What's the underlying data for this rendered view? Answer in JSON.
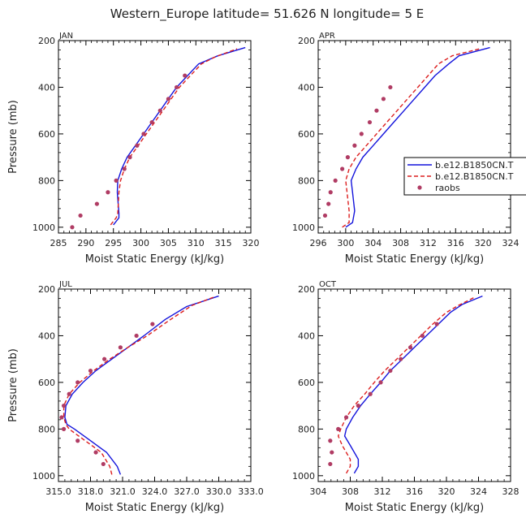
{
  "title": "Western_Europe  latitude= 51.626 N longitude= 5 E",
  "legend": {
    "panel": "APR",
    "entries": [
      {
        "label": "b.e12.B1850CN.T",
        "style": "solid",
        "color": "#1414dc"
      },
      {
        "label": "b.e12.B1850CN.T",
        "style": "dashed",
        "color": "#dc1e1e"
      },
      {
        "label": "raobs",
        "style": "marker",
        "color": "#b03c64"
      }
    ]
  },
  "colors": {
    "model1": "#1414dc",
    "model2": "#dc1e1e",
    "obs": "#b03c64"
  },
  "chart_data": [
    {
      "type": "line",
      "month": "JAN",
      "xlabel": "Moist Static Energy (kJ/kg)",
      "ylabel": "Pressure (mb)",
      "xlim": [
        285,
        320
      ],
      "xticks": [
        285,
        290,
        295,
        300,
        305,
        310,
        315,
        320
      ],
      "xtick_labels": [
        "285",
        "290",
        "295",
        "300",
        "305",
        "310",
        "315",
        "320"
      ],
      "ylim": [
        200,
        1025
      ],
      "yticks": [
        200,
        400,
        600,
        800,
        1000
      ],
      "ytick_labels": [
        "200",
        "400",
        "600",
        "800",
        "1000"
      ],
      "series": [
        {
          "name": "b.e12.B1850CN.T (solid)",
          "style": "solid",
          "points": [
            [
              295.0,
              990
            ],
            [
              296.0,
              960
            ],
            [
              296.0,
              940
            ],
            [
              295.7,
              850
            ],
            [
              295.8,
              800
            ],
            [
              296.5,
              750
            ],
            [
              297.5,
              700
            ],
            [
              299.0,
              650
            ],
            [
              300.5,
              600
            ],
            [
              302.0,
              550
            ],
            [
              303.5,
              500
            ],
            [
              305.0,
              450
            ],
            [
              306.5,
              400
            ],
            [
              308.5,
              350
            ],
            [
              310.5,
              300
            ],
            [
              314.0,
              265
            ],
            [
              319.0,
              230
            ]
          ]
        },
        {
          "name": "b.e12.B1850CN.T (dashed)",
          "style": "dashed",
          "points": [
            [
              294.5,
              990
            ],
            [
              295.5,
              960
            ],
            [
              295.8,
              940
            ],
            [
              296.0,
              850
            ],
            [
              296.3,
              800
            ],
            [
              297.0,
              750
            ],
            [
              298.0,
              700
            ],
            [
              299.5,
              650
            ],
            [
              301.0,
              600
            ],
            [
              302.5,
              550
            ],
            [
              304.0,
              500
            ],
            [
              305.5,
              450
            ],
            [
              307.0,
              400
            ],
            [
              309.0,
              350
            ],
            [
              311.0,
              300
            ],
            [
              313.5,
              270
            ],
            [
              317.5,
              235
            ]
          ]
        },
        {
          "name": "raobs",
          "style": "markers",
          "points": [
            [
              287.5,
              1000
            ],
            [
              289.0,
              950
            ],
            [
              292.0,
              900
            ],
            [
              294.0,
              850
            ],
            [
              295.5,
              800
            ],
            [
              297.0,
              750
            ],
            [
              298.0,
              700
            ],
            [
              299.3,
              650
            ],
            [
              300.5,
              600
            ],
            [
              302.0,
              550
            ],
            [
              303.5,
              500
            ],
            [
              305.0,
              450
            ],
            [
              306.5,
              400
            ],
            [
              308.0,
              350
            ]
          ]
        }
      ]
    },
    {
      "type": "line",
      "month": "APR",
      "xlabel": "Moist Static Energy (kJ/kg)",
      "ylabel": "",
      "xlim": [
        296,
        324
      ],
      "xticks": [
        296,
        300,
        304,
        308,
        312,
        316,
        320,
        324
      ],
      "xtick_labels": [
        "296",
        "300",
        "304",
        "308",
        "312",
        "316",
        "320",
        "324"
      ],
      "ylim": [
        200,
        1025
      ],
      "yticks": [
        200,
        400,
        600,
        800,
        1000
      ],
      "ytick_labels": [
        "200",
        "400",
        "600",
        "800",
        "1000"
      ],
      "series": [
        {
          "name": "b.e12.B1850CN.T (solid)",
          "style": "solid",
          "points": [
            [
              300.0,
              1000
            ],
            [
              301.0,
              980
            ],
            [
              301.3,
              930
            ],
            [
              301.0,
              850
            ],
            [
              300.8,
              800
            ],
            [
              301.5,
              750
            ],
            [
              302.5,
              700
            ],
            [
              304.0,
              650
            ],
            [
              305.5,
              600
            ],
            [
              307.0,
              550
            ],
            [
              308.5,
              500
            ],
            [
              310.0,
              450
            ],
            [
              311.5,
              400
            ],
            [
              313.0,
              350
            ],
            [
              315.0,
              300
            ],
            [
              316.5,
              265
            ],
            [
              321.0,
              230
            ]
          ]
        },
        {
          "name": "b.e12.B1850CN.T (dashed)",
          "style": "dashed",
          "points": [
            [
              299.5,
              1000
            ],
            [
              300.5,
              980
            ],
            [
              300.5,
              930
            ],
            [
              300.2,
              850
            ],
            [
              300.0,
              800
            ],
            [
              300.5,
              750
            ],
            [
              301.5,
              700
            ],
            [
              303.0,
              650
            ],
            [
              304.5,
              600
            ],
            [
              306.0,
              550
            ],
            [
              307.5,
              500
            ],
            [
              309.0,
              450
            ],
            [
              310.5,
              400
            ],
            [
              312.0,
              350
            ],
            [
              313.5,
              300
            ],
            [
              315.5,
              265
            ],
            [
              319.5,
              235
            ]
          ]
        },
        {
          "name": "raobs",
          "style": "markers",
          "points": [
            [
              297.0,
              950
            ],
            [
              297.5,
              900
            ],
            [
              297.8,
              850
            ],
            [
              298.5,
              800
            ],
            [
              299.5,
              750
            ],
            [
              300.3,
              700
            ],
            [
              301.3,
              650
            ],
            [
              302.3,
              600
            ],
            [
              303.5,
              550
            ],
            [
              304.5,
              500
            ],
            [
              305.5,
              450
            ],
            [
              306.5,
              400
            ]
          ]
        }
      ]
    },
    {
      "type": "line",
      "month": "JUL",
      "xlabel": "Moist Static Energy (kJ/kg)",
      "ylabel": "Pressure (mb)",
      "xlim": [
        315,
        333
      ],
      "xticks": [
        315,
        318,
        321,
        324,
        327,
        330,
        333
      ],
      "xtick_labels": [
        "315.0",
        "318.0",
        "321.0",
        "324.0",
        "327.0",
        "330.0",
        "333.0"
      ],
      "ylim": [
        200,
        1025
      ],
      "yticks": [
        200,
        400,
        600,
        800,
        1000
      ],
      "ytick_labels": [
        "200",
        "400",
        "600",
        "800",
        "1000"
      ],
      "series": [
        {
          "name": "b.e12.B1850CN.T (solid)",
          "style": "solid",
          "points": [
            [
              320.8,
              995
            ],
            [
              320.5,
              960
            ],
            [
              319.5,
              900
            ],
            [
              318.0,
              850
            ],
            [
              316.5,
              800
            ],
            [
              315.8,
              780
            ],
            [
              315.6,
              750
            ],
            [
              315.7,
              700
            ],
            [
              316.3,
              650
            ],
            [
              317.3,
              600
            ],
            [
              318.5,
              550
            ],
            [
              320.0,
              500
            ],
            [
              321.5,
              450
            ],
            [
              323.0,
              400
            ],
            [
              325.0,
              330
            ],
            [
              327.0,
              275
            ],
            [
              330.0,
              230
            ]
          ]
        },
        {
          "name": "b.e12.B1850CN.T (dashed)",
          "style": "dashed",
          "points": [
            [
              320.0,
              995
            ],
            [
              319.8,
              960
            ],
            [
              319.0,
              900
            ],
            [
              317.5,
              850
            ],
            [
              316.0,
              800
            ],
            [
              315.7,
              780
            ],
            [
              315.5,
              750
            ],
            [
              315.5,
              700
            ],
            [
              316.0,
              650
            ],
            [
              317.0,
              600
            ],
            [
              318.3,
              550
            ],
            [
              319.8,
              500
            ],
            [
              321.5,
              450
            ],
            [
              323.3,
              400
            ],
            [
              325.5,
              330
            ],
            [
              327.5,
              270
            ],
            [
              329.5,
              235
            ]
          ]
        },
        {
          "name": "raobs",
          "style": "markers",
          "points": [
            [
              319.2,
              950
            ],
            [
              318.5,
              900
            ],
            [
              316.8,
              850
            ],
            [
              315.5,
              800
            ],
            [
              315.3,
              750
            ],
            [
              315.5,
              700
            ],
            [
              316.0,
              650
            ],
            [
              316.8,
              600
            ],
            [
              318.0,
              550
            ],
            [
              319.3,
              500
            ],
            [
              320.8,
              450
            ],
            [
              322.3,
              400
            ],
            [
              323.8,
              350
            ]
          ]
        }
      ]
    },
    {
      "type": "line",
      "month": "OCT",
      "xlabel": "Moist Static Energy (kJ/kg)",
      "ylabel": "",
      "xlim": [
        304,
        328
      ],
      "xticks": [
        304,
        308,
        312,
        316,
        320,
        324,
        328
      ],
      "xtick_labels": [
        "304",
        "308",
        "312",
        "316",
        "320",
        "324",
        "328"
      ],
      "ylim": [
        200,
        1025
      ],
      "yticks": [
        200,
        400,
        600,
        800,
        1000
      ],
      "ytick_labels": [
        "200",
        "400",
        "600",
        "800",
        "1000"
      ],
      "series": [
        {
          "name": "b.e12.B1850CN.T (solid)",
          "style": "solid",
          "points": [
            [
              308.5,
              990
            ],
            [
              309.0,
              960
            ],
            [
              309.0,
              930
            ],
            [
              308.0,
              870
            ],
            [
              307.3,
              830
            ],
            [
              307.5,
              800
            ],
            [
              308.3,
              750
            ],
            [
              309.3,
              700
            ],
            [
              310.5,
              650
            ],
            [
              311.8,
              600
            ],
            [
              313.0,
              550
            ],
            [
              314.5,
              500
            ],
            [
              316.0,
              450
            ],
            [
              317.5,
              400
            ],
            [
              319.0,
              350
            ],
            [
              320.5,
              300
            ],
            [
              322.0,
              265
            ],
            [
              324.5,
              230
            ]
          ]
        },
        {
          "name": "b.e12.B1850CN.T (dashed)",
          "style": "dashed",
          "points": [
            [
              307.5,
              990
            ],
            [
              308.0,
              960
            ],
            [
              308.0,
              930
            ],
            [
              307.0,
              870
            ],
            [
              306.5,
              830
            ],
            [
              306.8,
              800
            ],
            [
              307.5,
              750
            ],
            [
              308.5,
              700
            ],
            [
              309.8,
              650
            ],
            [
              311.0,
              600
            ],
            [
              312.3,
              550
            ],
            [
              313.8,
              500
            ],
            [
              315.3,
              450
            ],
            [
              316.8,
              400
            ],
            [
              318.3,
              350
            ],
            [
              320.0,
              300
            ],
            [
              321.5,
              270
            ],
            [
              323.5,
              235
            ]
          ]
        },
        {
          "name": "raobs",
          "style": "markers",
          "points": [
            [
              305.5,
              950
            ],
            [
              305.7,
              900
            ],
            [
              305.5,
              850
            ],
            [
              306.5,
              800
            ],
            [
              307.5,
              750
            ],
            [
              309.0,
              700
            ],
            [
              310.5,
              650
            ],
            [
              311.8,
              600
            ],
            [
              313.0,
              550
            ],
            [
              314.3,
              500
            ],
            [
              315.5,
              450
            ],
            [
              317.0,
              400
            ],
            [
              318.8,
              350
            ]
          ]
        }
      ]
    }
  ]
}
